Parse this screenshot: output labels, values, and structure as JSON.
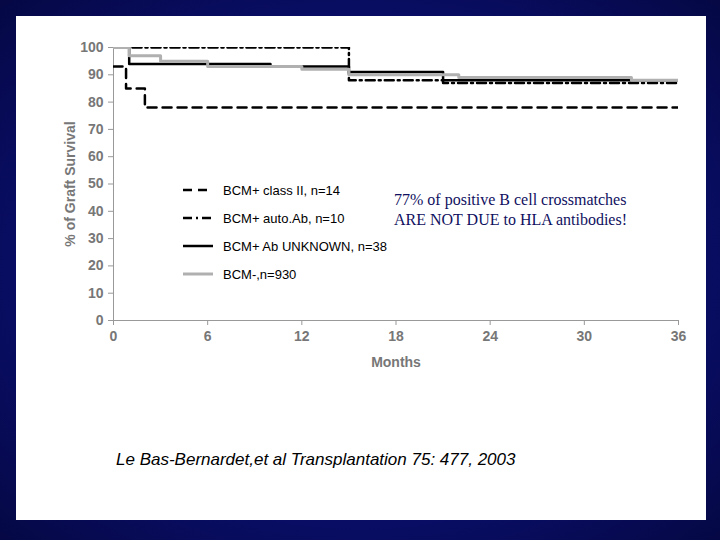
{
  "chart_data": {
    "type": "line",
    "xlabel": "Months",
    "ylabel": "% of Graft Survival",
    "xlim": [
      0,
      36
    ],
    "xticks": [
      0,
      6,
      12,
      18,
      24,
      30,
      36
    ],
    "ylim": [
      0,
      100
    ],
    "yticks": [
      0,
      10,
      20,
      30,
      40,
      50,
      60,
      70,
      80,
      90,
      100
    ],
    "annotation": [
      "77% of positive B cell crossmatches",
      "ARE NOT DUE to HLA antibodies!"
    ],
    "caption": "Le Bas-Bernardet,et al Transplantation 75: 477, 2003",
    "legend": "left",
    "series": [
      {
        "name": "BCM+ class II, n=14",
        "color": "#000000",
        "line_style": "dashed",
        "x": [
          0,
          0.8,
          2,
          36
        ],
        "values": [
          93,
          85,
          78,
          78
        ]
      },
      {
        "name": "BCM+ auto.Ab, n=10",
        "color": "#000000",
        "line_style": "dashdot",
        "x": [
          0,
          15,
          21,
          36
        ],
        "values": [
          100,
          88,
          87,
          87
        ]
      },
      {
        "name": "BCM+ Ab UNKNOWN, n=38",
        "color": "#000000",
        "line_style": "solid",
        "x": [
          0,
          1,
          10,
          15,
          21,
          36
        ],
        "values": [
          100,
          94,
          93,
          91,
          88,
          88
        ]
      },
      {
        "name": "BCM-,n=930",
        "color": "#b0b0b0",
        "line_style": "solid",
        "x": [
          0,
          1,
          3,
          6,
          12,
          15,
          22,
          33,
          36
        ],
        "values": [
          100,
          97,
          95,
          93,
          92,
          90,
          89,
          88,
          88
        ]
      }
    ]
  }
}
